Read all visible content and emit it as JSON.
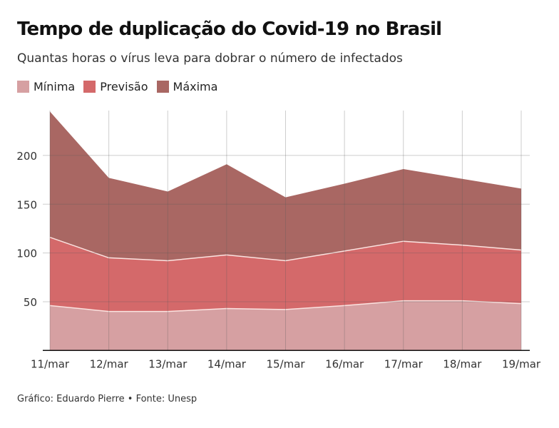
{
  "chart_data": {
    "type": "area",
    "title": "Tempo de duplicação do Covid-19 no Brasil",
    "subtitle": "Quantas horas o vírus leva para dobrar o número de infectados",
    "source": "Gráfico: Eduardo Pierre • Fonte: Unesp",
    "categories": [
      "11/mar",
      "12/mar",
      "13/mar",
      "14/mar",
      "15/mar",
      "16/mar",
      "17/mar",
      "18/mar",
      "19/mar"
    ],
    "series": [
      {
        "name": "Máxima",
        "color": "#a96763",
        "values": [
          245,
          177,
          163,
          191,
          157,
          171,
          186,
          176,
          166
        ]
      },
      {
        "name": "Previsão",
        "color": "#d4696a",
        "values": [
          116,
          95,
          92,
          98,
          92,
          102,
          112,
          108,
          103
        ]
      },
      {
        "name": "Mínima",
        "color": "#d6a0a2",
        "values": [
          46,
          40,
          40,
          43,
          42,
          46,
          51,
          51,
          48
        ]
      }
    ],
    "legend_order": [
      "Mínima",
      "Previsão",
      "Máxima"
    ],
    "yticks": [
      50,
      100,
      150,
      200
    ],
    "ylim": [
      0,
      246
    ],
    "grid": true,
    "legend_placement": "top-left"
  }
}
